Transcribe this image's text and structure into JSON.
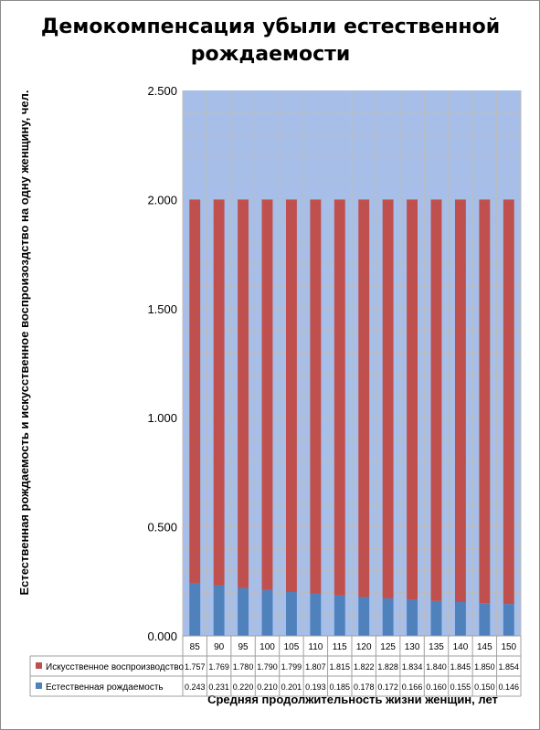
{
  "chart_data": {
    "type": "bar",
    "stacked": true,
    "title": "Демокомпенсация убыли естественной рождаемости",
    "xlabel": "Средняя продолжительность жизни женщин, лет",
    "ylabel": "Естественная рождаемость и искусственное воспроизоздство на одну женщину, чел.",
    "ylim": [
      0,
      2.5
    ],
    "yticks": [
      "0.000",
      "0.500",
      "1.000",
      "1.500",
      "2.000",
      "2.500"
    ],
    "grid": true,
    "categories": [
      "85",
      "90",
      "95",
      "100",
      "105",
      "110",
      "115",
      "120",
      "125",
      "130",
      "135",
      "140",
      "145",
      "150"
    ],
    "series": [
      {
        "name": "Естественная рождаемость",
        "color": "#4f81bd",
        "values": [
          0.243,
          0.231,
          0.22,
          0.21,
          0.201,
          0.193,
          0.185,
          0.178,
          0.172,
          0.166,
          0.16,
          0.155,
          0.15,
          0.146
        ],
        "labels": [
          "0.243",
          "0.231",
          "0.220",
          "0.210",
          "0.201",
          "0.193",
          "0.185",
          "0.178",
          "0.172",
          "0.166",
          "0.160",
          "0.155",
          "0.150",
          "0.146"
        ]
      },
      {
        "name": "Искусственное воспроизводство",
        "color": "#c0504d",
        "values": [
          1.757,
          1.769,
          1.78,
          1.79,
          1.799,
          1.807,
          1.815,
          1.822,
          1.828,
          1.834,
          1.84,
          1.845,
          1.85,
          1.854
        ],
        "labels": [
          "1.757",
          "1.769",
          "1.780",
          "1.790",
          "1.799",
          "1.807",
          "1.815",
          "1.822",
          "1.828",
          "1.834",
          "1.840",
          "1.845",
          "1.850",
          "1.854"
        ]
      }
    ],
    "table_rows_order": [
      "Искусственное воспроизводство",
      "Естественная рождаемость"
    ],
    "colors": {
      "plot_background": "#a7bfe8",
      "gridline": "#bcbcbc"
    }
  }
}
